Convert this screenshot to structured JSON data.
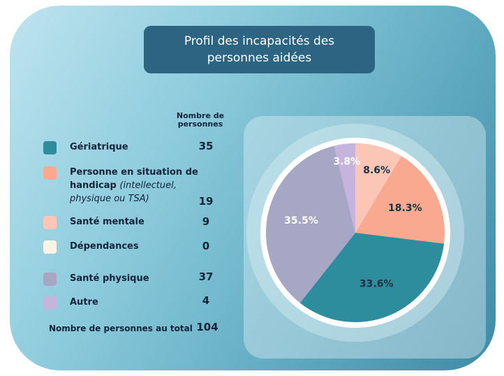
{
  "chart_data": {
    "type": "pie",
    "title": "Profil des incapacités des personnes aidées",
    "count_header": "Nombre de personnes",
    "categories": [
      "Gériatrique",
      "Personne en situation de handicap",
      "Santé mentale",
      "Dépendances",
      "Santé physique",
      "Autre"
    ],
    "category_details": [
      null,
      "(intellectuel, physique ou TSA)",
      null,
      null,
      null,
      null
    ],
    "counts": [
      35,
      19,
      9,
      0,
      37,
      4
    ],
    "values": [
      33.6,
      18.3,
      8.6,
      0,
      35.5,
      3.8
    ],
    "value_labels": [
      "33.6%",
      "18.3%",
      "8.6%",
      null,
      "35.5%",
      "3.8%"
    ],
    "colors": [
      "#2e8d9c",
      "#f8a98f",
      "#fcc6b6",
      "#fbf3e3",
      "#a7a6c5",
      "#c7b4dd"
    ],
    "total_label": "Nombre de personnes au total",
    "total": 104
  }
}
